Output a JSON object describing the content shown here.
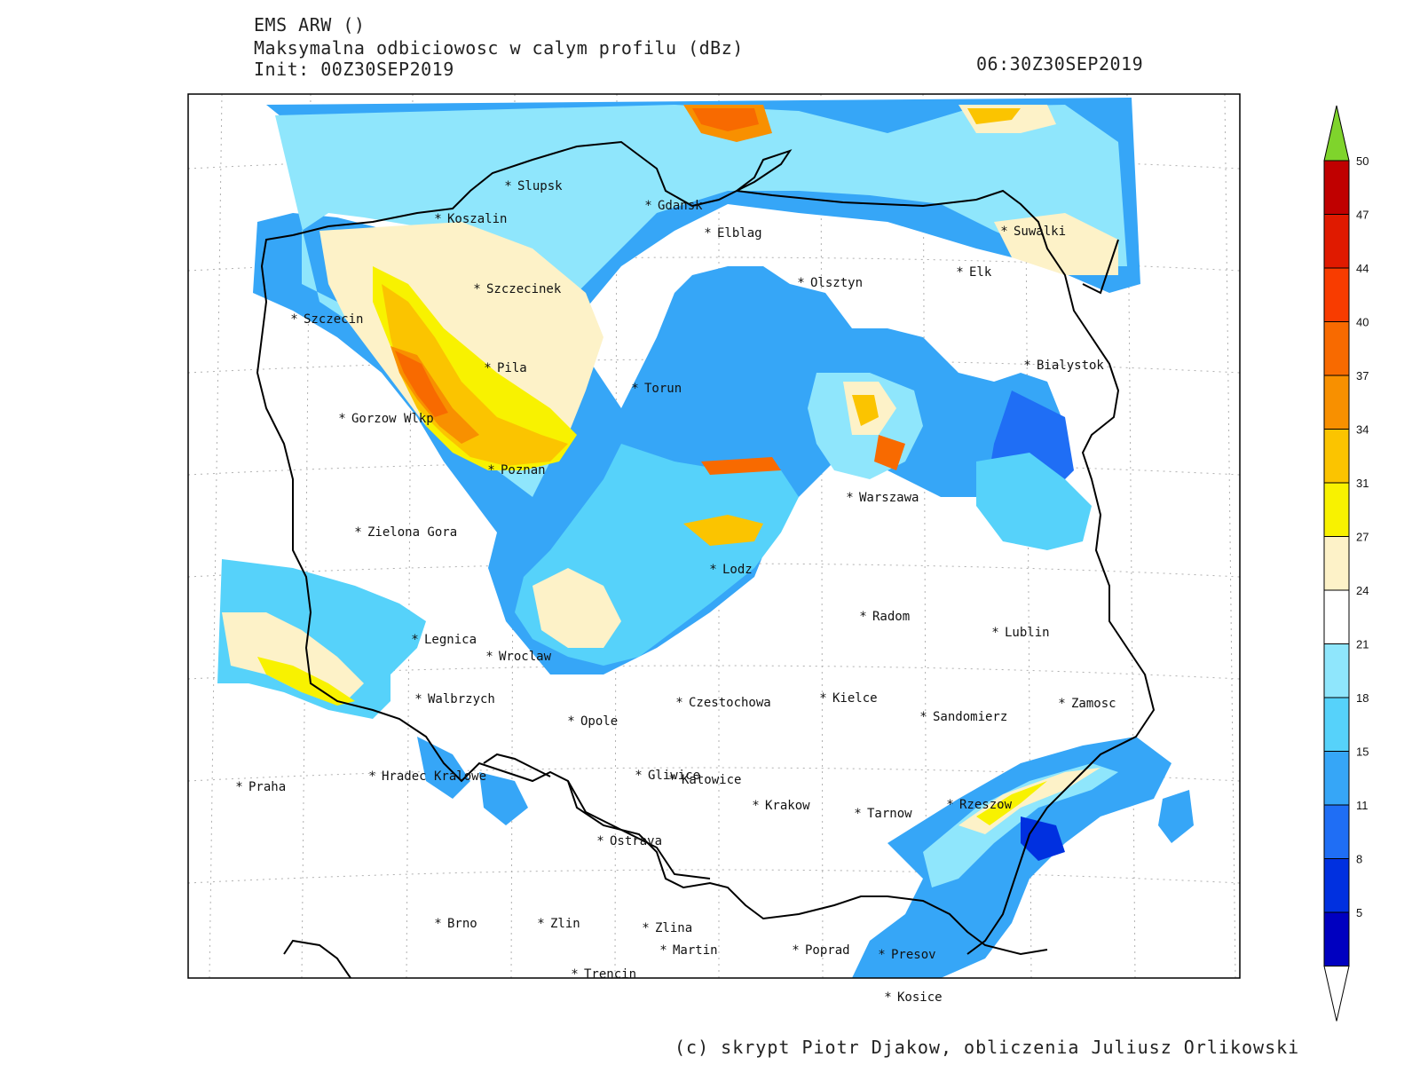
{
  "header": {
    "model": "EMS ARW ()",
    "field": "Maksymalna odbiciowosc w calym profilu (dBz)",
    "init": "Init: 00Z30SEP2019",
    "valid": "06:30Z30SEP2019"
  },
  "colorbar": {
    "labels": [
      "5",
      "8",
      "11",
      "15",
      "18",
      "21",
      "24",
      "27",
      "31",
      "34",
      "37",
      "40",
      "44",
      "47",
      "50"
    ],
    "colors": [
      "#0000c0",
      "#0030e0",
      "#1f6ef5",
      "#36a6f7",
      "#56d2fa",
      "#8fe6fc",
      "#ffffff",
      "#fdf2c8",
      "#f8f200",
      "#fbc400",
      "#f89000",
      "#f86a00",
      "#f83c00",
      "#e01a00",
      "#c00000"
    ],
    "over_color": "#7fd42c",
    "under_color": "#ffffff"
  },
  "cities": [
    {
      "name": "Slupsk"
    },
    {
      "name": "Koszalin"
    },
    {
      "name": "Gdansk"
    },
    {
      "name": "Elblag"
    },
    {
      "name": "Suwalki"
    },
    {
      "name": "Elk"
    },
    {
      "name": "Szczecinek"
    },
    {
      "name": "Olsztyn"
    },
    {
      "name": "Szczecin"
    },
    {
      "name": "Pila"
    },
    {
      "name": "Bialystok"
    },
    {
      "name": "Torun"
    },
    {
      "name": "Gorzow Wlkp"
    },
    {
      "name": "Poznan"
    },
    {
      "name": "Warszawa"
    },
    {
      "name": "Zielona Gora"
    },
    {
      "name": "Lodz"
    },
    {
      "name": "Radom"
    },
    {
      "name": "Lublin"
    },
    {
      "name": "Legnica"
    },
    {
      "name": "Wroclaw"
    },
    {
      "name": "Walbrzych"
    },
    {
      "name": "Czestochowa"
    },
    {
      "name": "Kielce"
    },
    {
      "name": "Zamosc"
    },
    {
      "name": "Opole"
    },
    {
      "name": "Sandomierz"
    },
    {
      "name": "Praha"
    },
    {
      "name": "Hradec Kralowe"
    },
    {
      "name": "Gliwice"
    },
    {
      "name": "Katowice"
    },
    {
      "name": "Krakow"
    },
    {
      "name": "Tarnow"
    },
    {
      "name": "Rzeszow"
    },
    {
      "name": "Ostrava"
    },
    {
      "name": "Brno"
    },
    {
      "name": "Zlin"
    },
    {
      "name": "Zlina"
    },
    {
      "name": "Martin"
    },
    {
      "name": "Poprad"
    },
    {
      "name": "Presov"
    },
    {
      "name": "Trencin"
    },
    {
      "name": "Kosice"
    }
  ],
  "footer": "(c) skrypt Piotr Djakow, obliczenia Juliusz Orlikowski"
}
